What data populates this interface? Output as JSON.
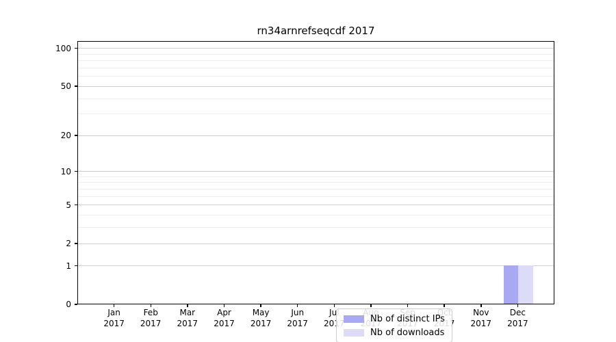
{
  "chart_data": {
    "type": "bar",
    "title": "rn34arnrefseqcdf 2017",
    "categories": [
      "Jan",
      "Feb",
      "Mar",
      "Apr",
      "May",
      "Jun",
      "Jul",
      "Aug",
      "Sep",
      "Oct",
      "Nov",
      "Dec"
    ],
    "category_year": "2017",
    "series": [
      {
        "name": "Nb of distinct IPs",
        "color": "#a9a9f3",
        "values": [
          0,
          0,
          0,
          0,
          0,
          0,
          0,
          0,
          0,
          0,
          0,
          1
        ]
      },
      {
        "name": "Nb of downloads",
        "color": "#dcdcf8",
        "values": [
          0,
          0,
          0,
          0,
          0,
          0,
          0,
          0,
          0,
          0,
          0,
          1
        ]
      }
    ],
    "xlabel": "",
    "ylabel": "",
    "y_scale": "log1p",
    "ylim": [
      0,
      114.6
    ],
    "y_major_ticks": [
      0,
      1,
      2,
      5,
      10,
      20,
      50,
      100
    ],
    "y_minor_ticks": [
      3,
      4,
      6,
      7,
      8,
      9,
      30,
      40,
      60,
      70,
      80,
      90
    ],
    "grid": "on",
    "legend_position": "lower-center-inside",
    "colors": {
      "major_grid": "#cfcfcf",
      "minor_grid": "#efefef",
      "spine": "#000000",
      "legend_border": "#cccccc"
    }
  }
}
